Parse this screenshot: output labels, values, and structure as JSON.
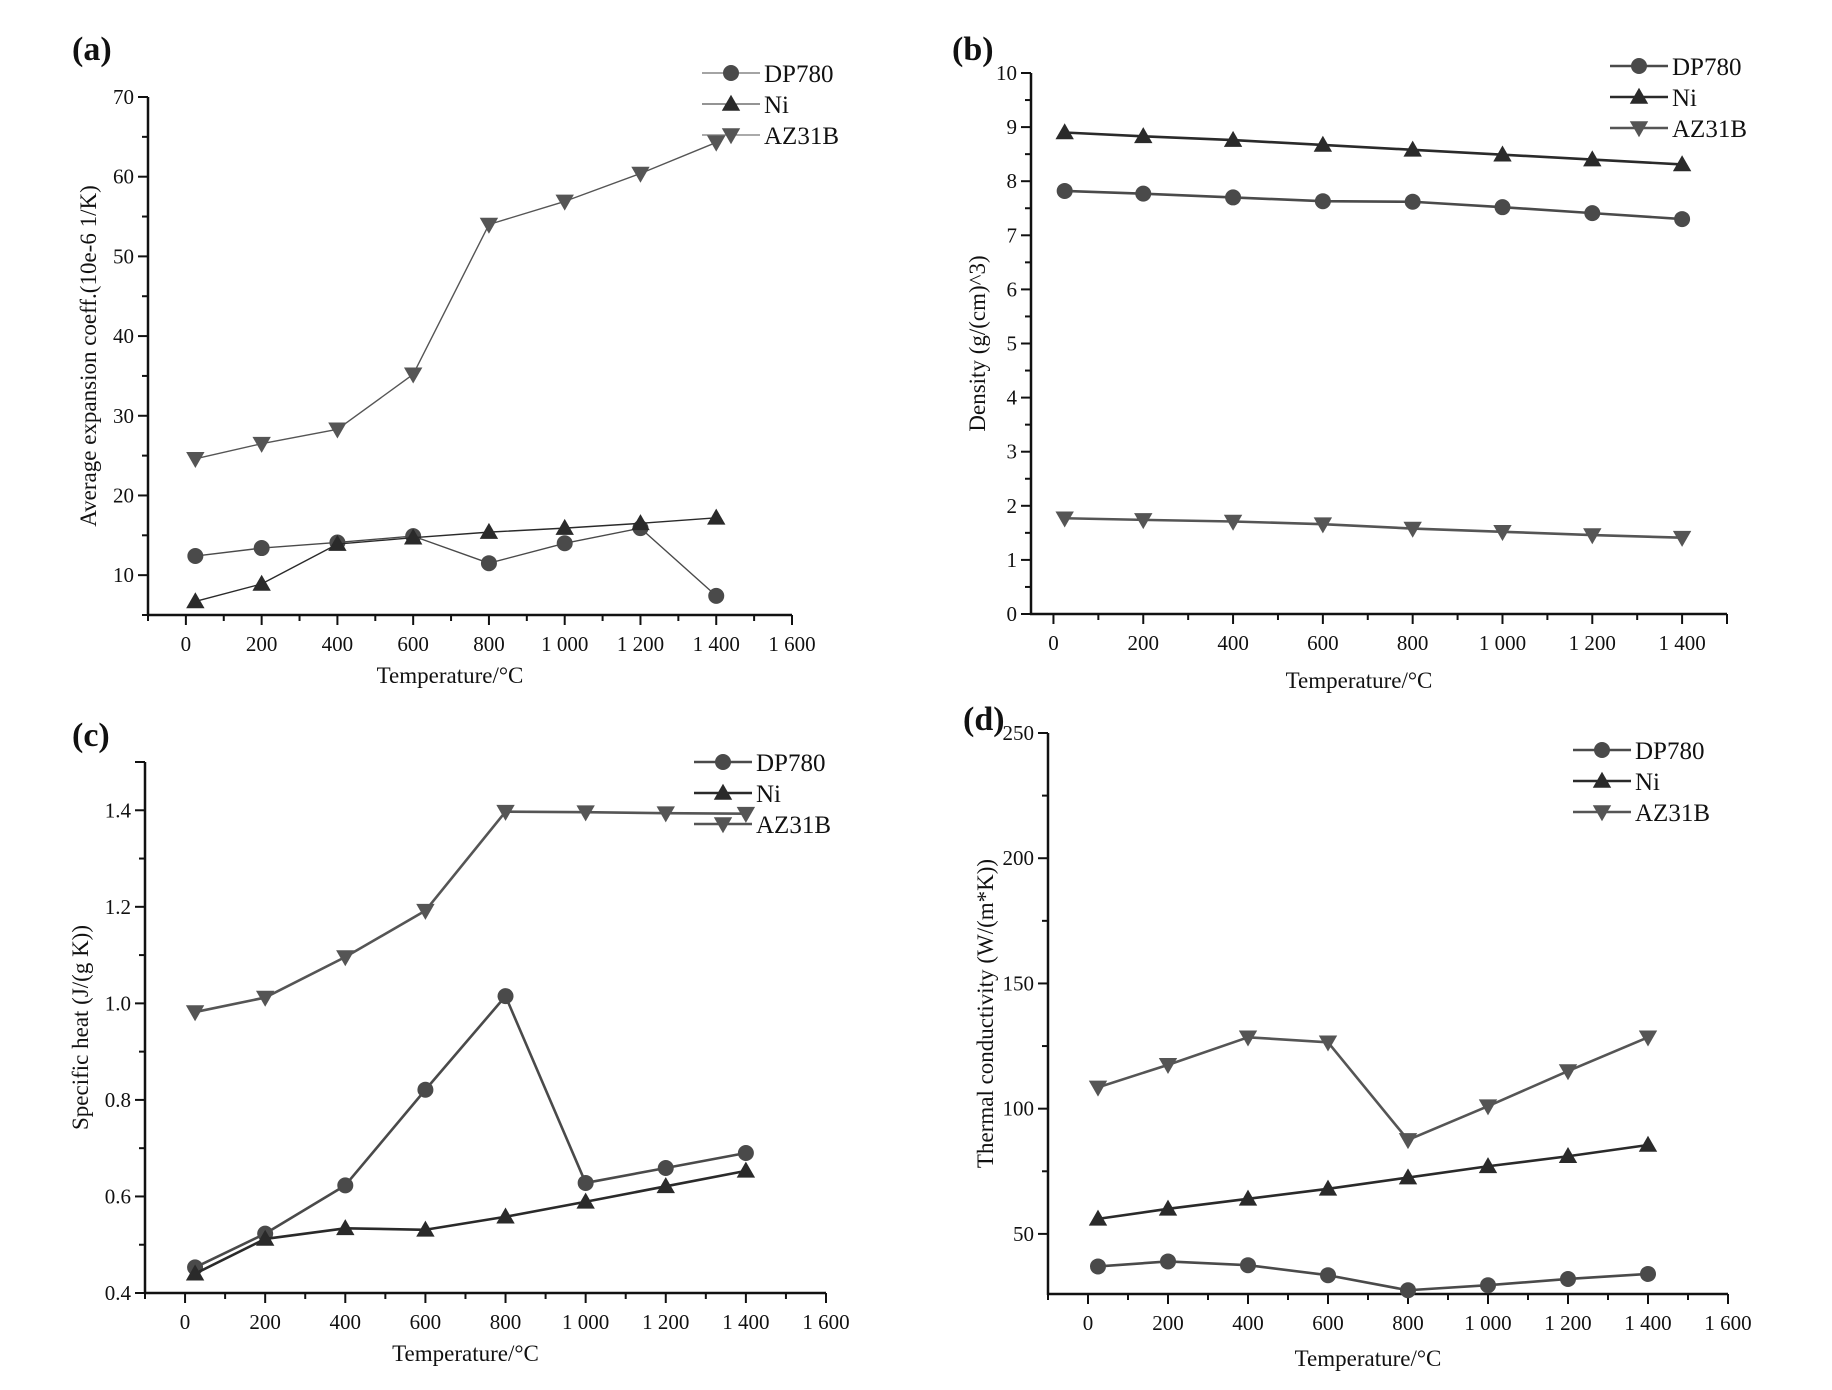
{
  "figure": {
    "series_colors": {
      "DP780": "#4a4a4a",
      "Ni": "#2a2a2a",
      "AZ31B": "#555555"
    },
    "axis_color": "#111111"
  },
  "chart_data": [
    {
      "type": "line",
      "panel_label": "(a)",
      "title": "",
      "xlabel": "Temperature/°C",
      "ylabel": "Average expansion coeff.(10e-6 1/K)",
      "xlim": [
        -100,
        1600
      ],
      "ylim": [
        5,
        70
      ],
      "xticks": [
        0,
        200,
        400,
        600,
        800,
        1000,
        1200,
        1400,
        1600
      ],
      "xtick_labels": [
        "0",
        "200",
        "400",
        "600",
        "800",
        "1 000",
        "1 200",
        "1 400",
        "1 600"
      ],
      "yticks": [
        10,
        20,
        30,
        40,
        50,
        60,
        70
      ],
      "ytick_labels": [
        "10",
        "20",
        "30",
        "40",
        "50",
        "60",
        "70"
      ],
      "legend": "top-right",
      "grid": false,
      "x": [
        25,
        200,
        400,
        600,
        800,
        1000,
        1200,
        1400
      ],
      "series": [
        {
          "name": "DP780",
          "marker": "circle",
          "values": [
            12.4,
            13.4,
            14.1,
            14.9,
            11.5,
            14.0,
            15.9,
            7.4
          ]
        },
        {
          "name": "Ni",
          "marker": "triangle-up",
          "values": [
            6.7,
            8.9,
            13.9,
            14.7,
            15.4,
            15.9,
            16.5,
            17.2
          ]
        },
        {
          "name": "AZ31B",
          "marker": "triangle-down",
          "values": [
            24.6,
            26.5,
            28.3,
            35.2,
            54.0,
            56.9,
            60.4,
            64.3
          ]
        }
      ]
    },
    {
      "type": "line",
      "panel_label": "(b)",
      "title": "",
      "xlabel": "Temperature/°C",
      "ylabel": "Density (g/(cm)^3)",
      "xlim": [
        -50,
        1500
      ],
      "ylim": [
        0,
        10
      ],
      "xticks": [
        0,
        200,
        400,
        600,
        800,
        1000,
        1200,
        1400
      ],
      "xtick_labels": [
        "0",
        "200",
        "400",
        "600",
        "800",
        "1 000",
        "1 200",
        "1 400"
      ],
      "yticks": [
        0,
        1,
        2,
        3,
        4,
        5,
        6,
        7,
        8,
        9,
        10
      ],
      "ytick_labels": [
        "0",
        "1",
        "2",
        "3",
        "4",
        "5",
        "6",
        "7",
        "8",
        "9",
        "10"
      ],
      "legend": "top-right",
      "grid": false,
      "x": [
        25,
        200,
        400,
        600,
        800,
        1000,
        1200,
        1400
      ],
      "series": [
        {
          "name": "DP780",
          "marker": "circle",
          "values": [
            7.82,
            7.77,
            7.7,
            7.63,
            7.62,
            7.52,
            7.41,
            7.3
          ]
        },
        {
          "name": "Ni",
          "marker": "triangle-up",
          "values": [
            8.9,
            8.83,
            8.76,
            8.67,
            8.58,
            8.49,
            8.4,
            8.31
          ]
        },
        {
          "name": "AZ31B",
          "marker": "triangle-down",
          "values": [
            1.77,
            1.74,
            1.71,
            1.66,
            1.58,
            1.52,
            1.46,
            1.41
          ]
        }
      ]
    },
    {
      "type": "line",
      "panel_label": "(c)",
      "title": "",
      "xlabel": "Temperature/°C",
      "ylabel": "Specific heat (J/(g K))",
      "xlim": [
        -100,
        1600
      ],
      "ylim": [
        0.4,
        1.5
      ],
      "xticks": [
        0,
        200,
        400,
        600,
        800,
        1000,
        1200,
        1400,
        1600
      ],
      "xtick_labels": [
        "0",
        "200",
        "400",
        "600",
        "800",
        "1 000",
        "1 200",
        "1 400",
        "1 600"
      ],
      "yticks": [
        0.4,
        0.6,
        0.8,
        1.0,
        1.2,
        1.4
      ],
      "ytick_labels": [
        "0.4",
        "0.6",
        "0.8",
        "1.0",
        "1.2",
        "1.4"
      ],
      "legend": "top-right",
      "grid": false,
      "x": [
        25,
        200,
        400,
        600,
        800,
        1000,
        1200,
        1400
      ],
      "series": [
        {
          "name": "DP780",
          "marker": "circle",
          "values": [
            0.453,
            0.523,
            0.623,
            0.821,
            1.015,
            0.628,
            0.659,
            0.69
          ]
        },
        {
          "name": "Ni",
          "marker": "triangle-up",
          "values": [
            0.44,
            0.512,
            0.534,
            0.531,
            0.558,
            0.589,
            0.621,
            0.653
          ]
        },
        {
          "name": "AZ31B",
          "marker": "triangle-down",
          "values": [
            0.982,
            1.012,
            1.096,
            1.192,
            1.397,
            1.396,
            1.394,
            1.393
          ]
        }
      ]
    },
    {
      "type": "line",
      "panel_label": "(d)",
      "title": "",
      "xlabel": "Temperature/°C",
      "ylabel": "Thermal conductivity (W/(m*K))",
      "xlim": [
        -100,
        1600
      ],
      "ylim": [
        26,
        250
      ],
      "xticks": [
        0,
        200,
        400,
        600,
        800,
        1000,
        1200,
        1400,
        1600
      ],
      "xtick_labels": [
        "0",
        "200",
        "400",
        "600",
        "800",
        "1 000",
        "1 200",
        "1 400",
        "1 600"
      ],
      "yticks": [
        50,
        100,
        150,
        200,
        250
      ],
      "ytick_labels": [
        "50",
        "100",
        "150",
        "200",
        "250"
      ],
      "legend": "top-right",
      "grid": false,
      "x": [
        25,
        200,
        400,
        600,
        800,
        1000,
        1200,
        1400
      ],
      "series": [
        {
          "name": "DP780",
          "marker": "circle",
          "values": [
            37,
            39,
            37.5,
            33.5,
            27.5,
            29.5,
            32,
            34
          ]
        },
        {
          "name": "Ni",
          "marker": "triangle-up",
          "values": [
            56,
            60,
            64,
            68,
            72.5,
            77,
            81,
            85.5
          ]
        },
        {
          "name": "AZ31B",
          "marker": "triangle-down",
          "values": [
            108.5,
            117.5,
            128.5,
            126.5,
            87.5,
            101,
            115,
            128.5
          ]
        }
      ]
    }
  ]
}
